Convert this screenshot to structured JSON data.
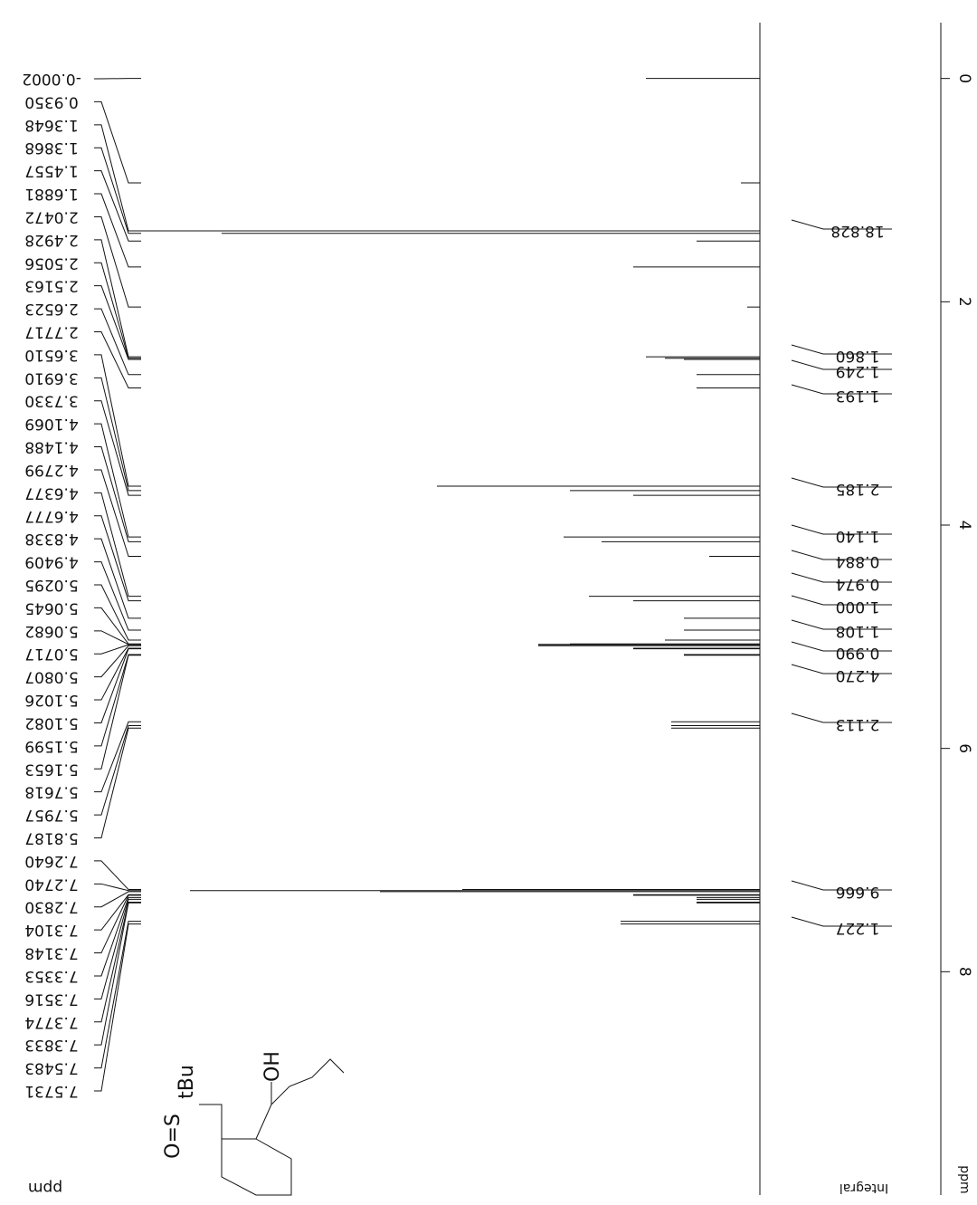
{
  "chart_data": {
    "type": "nmr",
    "x_label": "ppm",
    "integral_label": "Integral",
    "peak_label_unit": "ppm",
    "xlim": [
      -0.5,
      10.0
    ],
    "xticks": [
      0,
      2,
      4,
      6,
      8
    ],
    "peaks": [
      -0.0002,
      0.935,
      1.3648,
      1.3868,
      1.4557,
      1.6881,
      2.0472,
      2.4928,
      2.5056,
      2.5163,
      2.6523,
      2.7717,
      3.651,
      3.691,
      3.733,
      4.1069,
      4.1488,
      4.2799,
      4.6377,
      4.6777,
      4.8338,
      4.9409,
      5.0295,
      5.0645,
      5.0682,
      5.0717,
      5.0807,
      5.1026,
      5.1082,
      5.1599,
      5.1653,
      5.7618,
      5.7957,
      5.8187,
      7.264,
      7.274,
      7.283,
      7.3104,
      7.3148,
      7.3353,
      7.3516,
      7.3774,
      7.3833,
      7.5483,
      7.5731
    ],
    "peak_labels": [
      "-0.0002",
      "0.9350",
      "1.3648",
      "1.3868",
      "1.4557",
      "1.6881",
      "2.0472",
      "2.4928",
      "2.5056",
      "2.5163",
      "2.6523",
      "2.7717",
      "3.6510",
      "3.6910",
      "3.7330",
      "4.1069",
      "4.1488",
      "4.2799",
      "4.6377",
      "4.6777",
      "4.8338",
      "4.9409",
      "5.0295",
      "5.0645",
      "5.0682",
      "5.0717",
      "5.0807",
      "5.1026",
      "5.1082",
      "5.1599",
      "5.1653",
      "5.7618",
      "5.7957",
      "5.8187",
      "7.2640",
      "7.2740",
      "7.2830",
      "7.3104",
      "7.3148",
      "7.3353",
      "7.3516",
      "7.3774",
      "7.3833",
      "7.5483",
      "7.5731"
    ],
    "peak_heights": [
      0.18,
      0.03,
      0.98,
      0.85,
      0.1,
      0.2,
      0.02,
      0.18,
      0.15,
      0.12,
      0.1,
      0.1,
      0.51,
      0.3,
      0.2,
      0.31,
      0.25,
      0.08,
      0.27,
      0.2,
      0.12,
      0.12,
      0.15,
      0.3,
      0.35,
      0.35,
      0.35,
      0.2,
      0.2,
      0.12,
      0.12,
      0.14,
      0.14,
      0.14,
      0.47,
      0.9,
      0.6,
      0.2,
      0.2,
      0.1,
      0.1,
      0.1,
      0.1,
      0.22,
      0.22
    ],
    "integrals": [
      18.828,
      1.86,
      1.249,
      1.193,
      2.185,
      1.14,
      0.884,
      0.974,
      1.0,
      1.108,
      0.99,
      4.27,
      2.113,
      9.666,
      1.227
    ],
    "integral_labels": [
      "18.828",
      "1.860",
      "1.249",
      "1.193",
      "2.185",
      "1.140",
      "0.884",
      "0.974",
      "1.000",
      "1.108",
      "0.990",
      "4.270",
      "2.113",
      "9.666",
      "1.227"
    ],
    "molecule": {
      "sulfinyl": "O=S",
      "tert_butyl": "tBu",
      "hydroxyl": "OH"
    }
  }
}
